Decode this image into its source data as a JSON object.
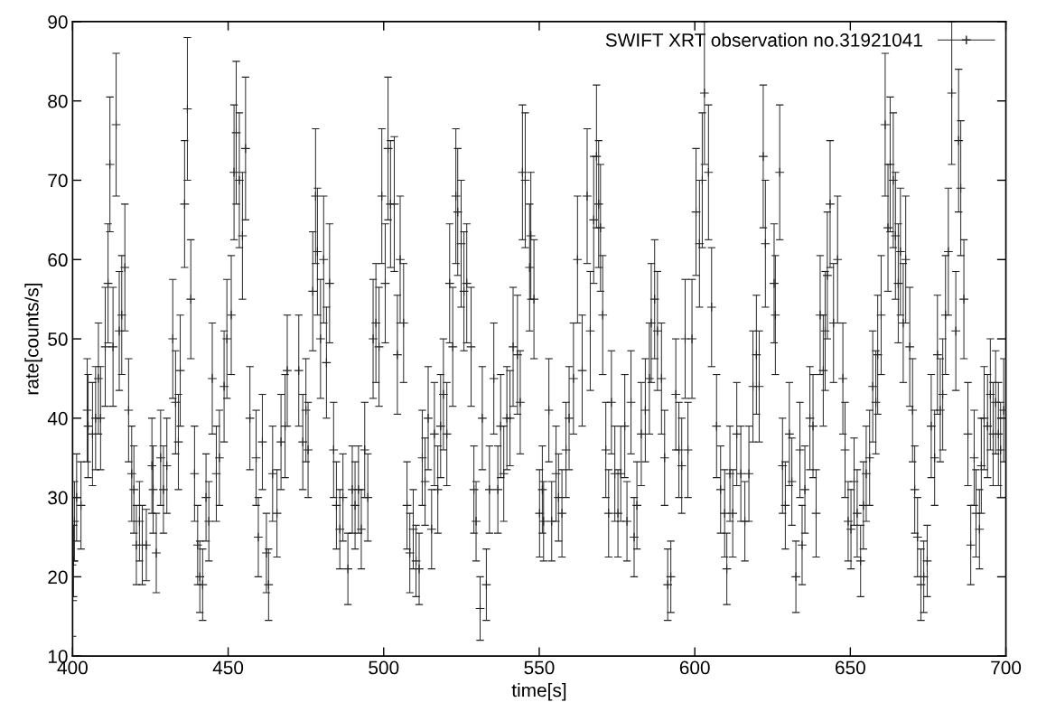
{
  "chart_data": {
    "type": "scatter",
    "xlabel": "time[s]",
    "ylabel": "rate[counts/s]",
    "xlim": [
      400,
      700
    ],
    "xticks": [
      400,
      450,
      500,
      550,
      600,
      650,
      700
    ],
    "ylim": [
      10,
      90
    ],
    "yticks": [
      10,
      20,
      30,
      40,
      50,
      60,
      70,
      80,
      90
    ],
    "grid": false,
    "legend": "top right",
    "marker": "cross",
    "series": [
      {
        "name": "SWIFT XRT observation no.31921041",
        "color": "#222222",
        "x": [
          400,
          400.3,
          400.6,
          401.3,
          402.7,
          404.7,
          405,
          406.4,
          407.4,
          408.3,
          409,
          410.5,
          411.4,
          412,
          413,
          414,
          415,
          415.8,
          416.8,
          418,
          419,
          419.7,
          420.5,
          421.5,
          422.4,
          423.7,
          425.5,
          425.9,
          426.9,
          428.3,
          429.2,
          430.3,
          432.2,
          433.1,
          434,
          434.6,
          436,
          436.9,
          438,
          439.2,
          440.2,
          440.9,
          441.8,
          442.9,
          443.8,
          444.9,
          446.2,
          447.2,
          448.7,
          449.6,
          451,
          451.9,
          452.6,
          453.6,
          454.6,
          455.6,
          457,
          459,
          459.7,
          461,
          462.3,
          463,
          464.3,
          465.7,
          467,
          468.3,
          469,
          472.7,
          474,
          475,
          475.7,
          477.2,
          478.1,
          478.7,
          479.7,
          480.7,
          481.6,
          482.6,
          483.9,
          484.8,
          485.9,
          486.9,
          488.5,
          489.9,
          490.8,
          491.9,
          492.8,
          493.9,
          494.9,
          496.6,
          497.5,
          498.5,
          499.4,
          500.5,
          501.4,
          502.2,
          503.4,
          504.4,
          505.3,
          506.4,
          507.5,
          508.4,
          509.5,
          510.4,
          511.4,
          512.4,
          513.3,
          514.3,
          515.4,
          516.3,
          517.4,
          518.3,
          519.2,
          520.3,
          521.2,
          522.2,
          523.2,
          523.8,
          524.9,
          525.8,
          526.7,
          528.1,
          529,
          529.7,
          531,
          531.7,
          533,
          534,
          535.4,
          536.7,
          537.6,
          538.6,
          539.6,
          540.6,
          541.6,
          543,
          543.9,
          544.6,
          545.5,
          546.9,
          547.3,
          548.3,
          550.1,
          551,
          551.4,
          553.1,
          554,
          555.4,
          556.2,
          557.3,
          558.6,
          559.6,
          561,
          562.3,
          563.8,
          565.4,
          566.4,
          567.5,
          568.4,
          569.1,
          569.7,
          570.4,
          571.4,
          572.3,
          573.2,
          574.3,
          575.3,
          576.2,
          577.5,
          578.2,
          579.5,
          580.5,
          581.4,
          582.8,
          584.1,
          585.4,
          586,
          587.1,
          588,
          589.3,
          590.3,
          591.3,
          592.3,
          593.9,
          594.9,
          595.8,
          596.9,
          597.8,
          599.1,
          600.4,
          601.5,
          602.4,
          603.1,
          604.4,
          605.4,
          607,
          608.3,
          609.6,
          610.3,
          611.3,
          612.2,
          613.5,
          614.8,
          616.1,
          617.4,
          618.7,
          619.8,
          620.7,
          622,
          622.7,
          625.5,
          625.9,
          627.3,
          628.2,
          629.1,
          630.4,
          631.2,
          632.5,
          633.8,
          634.5,
          635.4,
          637,
          638,
          639,
          640.3,
          641.3,
          641.9,
          642.6,
          643.5,
          644.6,
          645.9,
          647.6,
          648.3,
          649.3,
          650.2,
          651.2,
          652.2,
          653.3,
          654.2,
          655.1,
          656.2,
          657.2,
          658.2,
          658.8,
          659.9,
          661.2,
          662.1,
          662.8,
          663.8,
          664.5,
          665.4,
          666.1,
          667,
          667.8,
          669.1,
          670,
          670.7,
          671.6,
          672.7,
          673.6,
          674.7,
          676,
          677.1,
          678,
          678.9,
          679.7,
          680.6,
          681.5,
          682.6,
          683.9,
          684.8,
          685.5,
          686.5,
          687.8,
          688.7,
          689.8,
          690.4,
          691.5,
          692.1,
          693,
          694.1,
          695,
          695.9,
          696.7,
          697.6,
          698.3,
          699.3
        ],
        "values": [
          17,
          22,
          27,
          30,
          29,
          41,
          39,
          38,
          40,
          45,
          40,
          49,
          57,
          72,
          49,
          77,
          51,
          53,
          59,
          41,
          33,
          31,
          24,
          27,
          24,
          24,
          34,
          31,
          23,
          35,
          31,
          34,
          50,
          42,
          37,
          46,
          67,
          79,
          55,
          33,
          24,
          20,
          19,
          30,
          27,
          45,
          33,
          35,
          44,
          50,
          53,
          71,
          76,
          70,
          63,
          74,
          40,
          35,
          25,
          37,
          23,
          19,
          33,
          28,
          37,
          39,
          46,
          46,
          37,
          41,
          36,
          56,
          68,
          61,
          50,
          60,
          47,
          57,
          36,
          29,
          26,
          30,
          21,
          31,
          29,
          31,
          26,
          36,
          30,
          50,
          52,
          49,
          68,
          57,
          74,
          67,
          67,
          48,
          60,
          52,
          29,
          23,
          26,
          22,
          21,
          35,
          32,
          40,
          26,
          38,
          31,
          39,
          43,
          38,
          57,
          49,
          68,
          66,
          62,
          56,
          57,
          49,
          31,
          27,
          16,
          40,
          19,
          31,
          45,
          31,
          39,
          33,
          40,
          40,
          49,
          48,
          42,
          71,
          70,
          59,
          63,
          55,
          28,
          31,
          27,
          41,
          27,
          33,
          30,
          28,
          36,
          40,
          45,
          60,
          46,
          68,
          51,
          65,
          73,
          67,
          64,
          53,
          36,
          28,
          42,
          33,
          28,
          33,
          39,
          27,
          42,
          25,
          29,
          38,
          41,
          45,
          52,
          55,
          51,
          45,
          35,
          19,
          20,
          43,
          36,
          34,
          50,
          36,
          50,
          66,
          62,
          70,
          81,
          71,
          54,
          39,
          31,
          28,
          21,
          33,
          28,
          38,
          33,
          27,
          33,
          44,
          48,
          44,
          73,
          62,
          57,
          53,
          71,
          34,
          29,
          38,
          32,
          20,
          36,
          24,
          31,
          40,
          39,
          28,
          53,
          46,
          51,
          58,
          67,
          52,
          60,
          45,
          36,
          27,
          26,
          32,
          28,
          22,
          29,
          33,
          35,
          44,
          42,
          48,
          53,
          77,
          64,
          72,
          70,
          63,
          57,
          61,
          52,
          60,
          49,
          41,
          31,
          25,
          19,
          20,
          22,
          39,
          35,
          48,
          41,
          43,
          53,
          61,
          81,
          51,
          75,
          69,
          55,
          38,
          24,
          35,
          28,
          26,
          34,
          40,
          39,
          43,
          38,
          42,
          38,
          36,
          41
        ],
        "errors": [
          4.5,
          4.5,
          5,
          5.5,
          5.5,
          6.5,
          6.5,
          6.5,
          6.5,
          7,
          6.5,
          7.5,
          7.5,
          8.5,
          7.5,
          9,
          7.5,
          7.5,
          8,
          6.5,
          6,
          5.5,
          5,
          5,
          5,
          4.5,
          6,
          5.5,
          5,
          6,
          5.5,
          6,
          7.5,
          6.5,
          6,
          7,
          8,
          9,
          7.5,
          6,
          5,
          4.5,
          4.5,
          5.5,
          5,
          7,
          6,
          6,
          7,
          7.5,
          7.5,
          8.5,
          9,
          8.5,
          8,
          9,
          6.5,
          6,
          5,
          6,
          5,
          4.5,
          6,
          5.5,
          6,
          6.5,
          7,
          7,
          6,
          6.5,
          6,
          7.5,
          8.5,
          8,
          7.5,
          8,
          7,
          7.5,
          6,
          5.5,
          5,
          5.5,
          4.5,
          5.5,
          5.5,
          5.5,
          5,
          6,
          5.5,
          7.5,
          7.5,
          7.5,
          8.5,
          7.5,
          9,
          8,
          8.5,
          7.5,
          8,
          7.5,
          5.5,
          5,
          5,
          4.5,
          4.5,
          6,
          5.5,
          6.5,
          5,
          6.5,
          5.5,
          6.5,
          7,
          6.5,
          7.5,
          7.5,
          8.5,
          8,
          8,
          7.5,
          7.5,
          7.5,
          5.5,
          5,
          4,
          6.5,
          4.5,
          5.5,
          7,
          5.5,
          6.5,
          6,
          6.5,
          6,
          7.5,
          7.5,
          6.5,
          8.5,
          8.5,
          8,
          8,
          7.5,
          5.5,
          5.5,
          5,
          6.5,
          5,
          6,
          5.5,
          5.5,
          6,
          6.5,
          7,
          8,
          7,
          8.5,
          7.5,
          8,
          9,
          8,
          8,
          7.5,
          6,
          5.5,
          6.5,
          6,
          5.5,
          6,
          6.5,
          5,
          6.5,
          5,
          5.5,
          6.5,
          6.5,
          7,
          7.5,
          7.5,
          7.5,
          7,
          6,
          4.5,
          4.5,
          7,
          6,
          6,
          7.5,
          6,
          7.5,
          8,
          8,
          8.5,
          9,
          8.5,
          7.5,
          6.5,
          5.5,
          5.5,
          4.5,
          6,
          5.5,
          6.5,
          6,
          5,
          6,
          7,
          7.5,
          7,
          9,
          8,
          7.5,
          7.5,
          8.5,
          6,
          5.5,
          6.5,
          5.5,
          4.5,
          6,
          5,
          5.5,
          6.5,
          6.5,
          5.5,
          7.5,
          7,
          7.5,
          8,
          8,
          7.5,
          8,
          7,
          6,
          5,
          5,
          5.5,
          5.5,
          4.5,
          5.5,
          6,
          6,
          7,
          6.5,
          7.5,
          7.5,
          9,
          8,
          8.5,
          8.5,
          8,
          7.5,
          8,
          7.5,
          8,
          7.5,
          6.5,
          5.5,
          5,
          4.5,
          4.5,
          4.5,
          6.5,
          6,
          7.5,
          6.5,
          7,
          7.5,
          8,
          9,
          7.5,
          9,
          8.5,
          7.5,
          6.5,
          5,
          6,
          5.5,
          5,
          6,
          6.5,
          6.5,
          7,
          6.5,
          6.5,
          6.5,
          6,
          6.5
        ]
      }
    ]
  }
}
